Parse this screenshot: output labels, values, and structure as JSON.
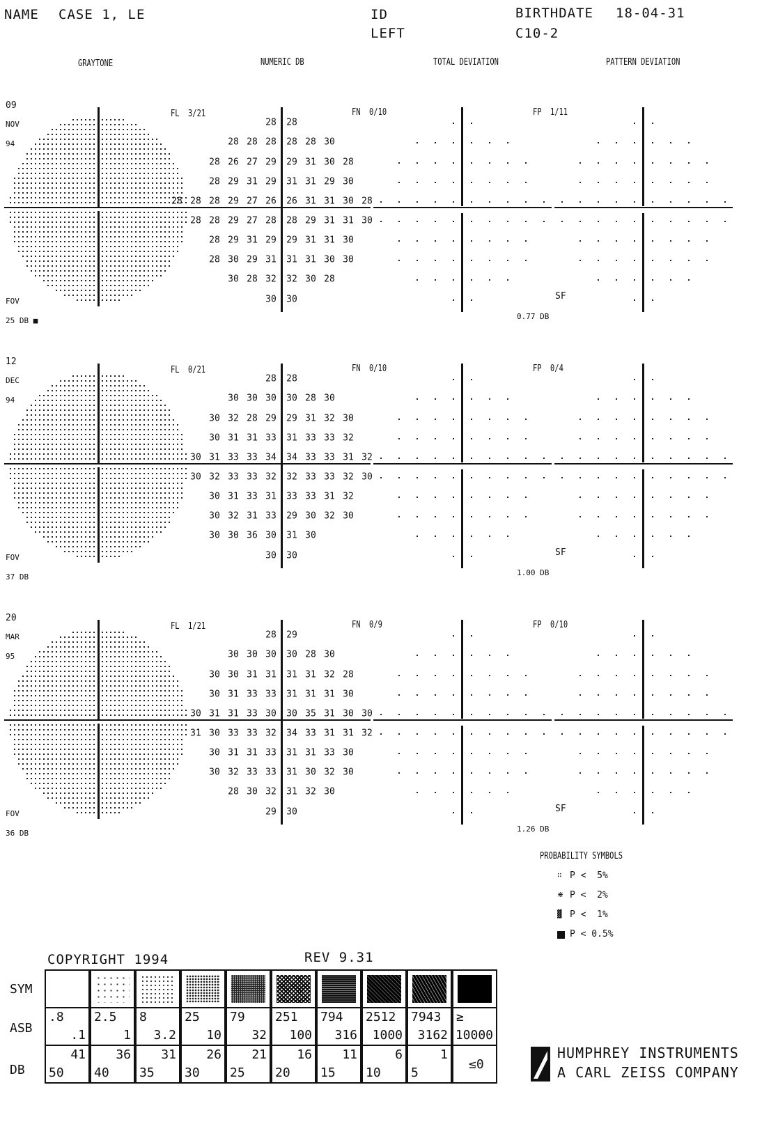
{
  "header": {
    "name_label": "NAME",
    "name_value": "CASE 1, LE",
    "id_label": "ID",
    "eye": "LEFT",
    "birthdate_label": "BIRTHDATE",
    "birthdate_value": "18-04-31",
    "program": "C10-2"
  },
  "columns": [
    "GRAYTONE",
    "NUMERIC DB",
    "TOTAL DEVIATION",
    "PATTERN DEVIATION"
  ],
  "tests": [
    {
      "day": "09",
      "month": "NOV",
      "year": "94",
      "fl": "FL  3/21",
      "fn": "FN  0/10",
      "fp": "FP  1/11",
      "fov_label": "FOV",
      "fov_value": "25 DB ■",
      "sf_label": "SF",
      "sf_value": "0.77 DB",
      "rows": [
        "28 |28",
        "28  28  28 |28  28  30",
        "28  26  27  29 |29  31  30  28",
        "28  29  31  29 |31  31  29  30",
        "28  28  28  29  27  26 |26  31  31  30  28",
        "28  28  29  27  28 |28  29  31  31  30",
        "28  29  31  29 |29  31  31  30",
        "28  30  29  31 |31  31  30  30",
        "30  28  32 |32  30  28",
        "30 |30"
      ]
    },
    {
      "day": "12",
      "month": "DEC",
      "year": "94",
      "fl": "FL  0/21",
      "fn": "FN  0/10",
      "fp": "FP  0/4",
      "fov_label": "FOV",
      "fov_value": "37 DB",
      "sf_label": "SF",
      "sf_value": "1.00 DB",
      "rows": [
        "28 |28",
        "30  30  30 |30  28  30",
        "30  32  28  29 |29  31  32  30",
        "30  31  31  33 |31  33  33  32",
        "30  31  33  33  34 |34  33  33  31  32",
        "30  32  33  33  32 |32  33  33  32  30",
        "30  31  33  31 |33  33  31  32",
        "30  32  31  33 |29  30  32  30",
        "30  30  36  30 |31  30",
        "30 |30"
      ]
    },
    {
      "day": "20",
      "month": "MAR",
      "year": "95",
      "fl": "FL  1/21",
      "fn": "FN  0/9",
      "fp": "FP  0/10",
      "fov_label": "FOV",
      "fov_value": "36 DB",
      "sf_label": "SF",
      "sf_value": "1.26 DB",
      "rows": [
        "28 |29",
        "30  30  30 |30  28  30",
        "30  30  31  31 |31  31  32  28",
        "30  31  33  33 |31  31  31  30",
        "30  31  31  33  30 |30  35  31  30  30",
        "31  30  33  33  32 |34  33  31  31  32",
        "30  31  31  33 |31  31  33  30",
        "30  32  33  33 |31  30  32  30",
        "28  30  32 |31  32  30",
        "29 |30"
      ]
    }
  ],
  "prob_symbols": {
    "title": "PROBABILITY SYMBOLS",
    "items": [
      "P <  5%",
      "P <  2%",
      "P <  1%",
      "P < 0.5%"
    ]
  },
  "footer": {
    "copyright": "COPYRIGHT 1994",
    "rev": "REV 9.31",
    "sym_label": "SYM",
    "asb_label": "ASB",
    "db_label": "DB",
    "asb": [
      [
        ".8",
        ".1"
      ],
      [
        "2.5",
        "1"
      ],
      [
        "8",
        "3.2"
      ],
      [
        "25",
        "10"
      ],
      [
        "79",
        "32"
      ],
      [
        "251",
        "100"
      ],
      [
        "794",
        "316"
      ],
      [
        "2512",
        "1000"
      ],
      [
        "7943",
        "3162"
      ],
      [
        "≥",
        "10000"
      ]
    ],
    "db": [
      [
        "41",
        "50"
      ],
      [
        "36",
        "40"
      ],
      [
        "31",
        "35"
      ],
      [
        "26",
        "30"
      ],
      [
        "21",
        "25"
      ],
      [
        "16",
        "20"
      ],
      [
        "11",
        "15"
      ],
      [
        "6",
        "10"
      ],
      [
        "1",
        "5"
      ],
      [
        "≤0",
        ""
      ]
    ],
    "company1": "HUMPHREY INSTRUMENTS",
    "company2": "A CARL ZEISS COMPANY"
  }
}
